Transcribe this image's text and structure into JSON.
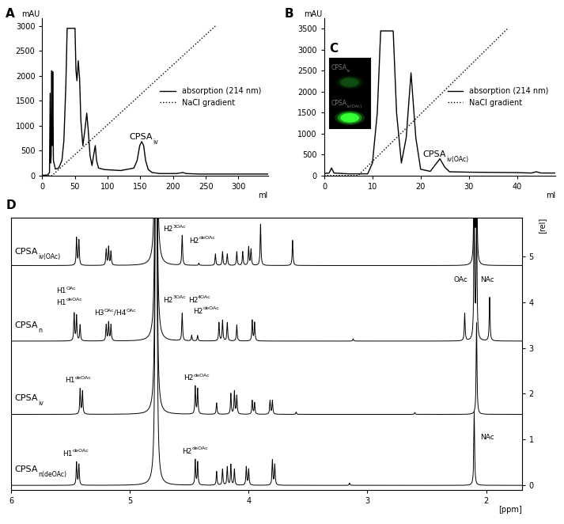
{
  "chart_data": [
    {
      "panel": "A",
      "type": "line",
      "x_label": "ml",
      "y_label": "mAU",
      "xlim": [
        0,
        345
      ],
      "xticks": [
        0,
        50,
        100,
        150,
        200,
        250,
        300
      ],
      "ylim": [
        0,
        3150
      ],
      "yticks": [
        0,
        500,
        1000,
        1500,
        2000,
        2500,
        3000
      ],
      "legend": "center right",
      "series": [
        {
          "name": "absorption (214 nm)",
          "color": "#000000",
          "line_style": "solid",
          "x": [
            0,
            8,
            11,
            12,
            12.8,
            13.6,
            14.4,
            15.2,
            16,
            17,
            20,
            25,
            30,
            33,
            36,
            38,
            50,
            51.5,
            53,
            55,
            57,
            59,
            62,
            65,
            68,
            70,
            73,
            76,
            79,
            81,
            83,
            86,
            95,
            120,
            140,
            145,
            149,
            152,
            155,
            158,
            162,
            168,
            180,
            205,
            210,
            215,
            220,
            240,
            345
          ],
          "values": [
            5,
            10,
            60,
            1650,
            250,
            400,
            2100,
            600,
            2080,
            300,
            130,
            150,
            300,
            700,
            1800,
            2950,
            2950,
            2100,
            1900,
            2300,
            1950,
            1100,
            600,
            900,
            1250,
            950,
            400,
            200,
            450,
            600,
            300,
            150,
            120,
            100,
            150,
            300,
            600,
            680,
            600,
            300,
            120,
            60,
            40,
            40,
            50,
            60,
            40,
            30,
            30
          ]
        },
        {
          "name": "NaCl gradient",
          "color": "#000000",
          "line_style": "dotted",
          "x": [
            0,
            15,
            265
          ],
          "values": [
            0,
            0,
            3000
          ]
        }
      ],
      "annotations": [
        {
          "parts": [
            {
              "text": "CPSA"
            },
            {
              "text": "iv",
              "style": "sub"
            }
          ],
          "x": 133,
          "y": 720
        }
      ]
    },
    {
      "panel": "B",
      "type": "line",
      "x_label": "ml",
      "y_label": "mAU",
      "xlim": [
        0,
        48
      ],
      "xticks": [
        0,
        10,
        20,
        30,
        40
      ],
      "ylim": [
        0,
        3750
      ],
      "yticks": [
        0,
        500,
        1000,
        1500,
        2000,
        2500,
        3000,
        3500
      ],
      "legend": "center right",
      "series": [
        {
          "name": "absorption (214 nm)",
          "color": "#000000",
          "line_style": "solid",
          "x": [
            0,
            1,
            1.5,
            2,
            5,
            9,
            10,
            11,
            11.7,
            14.3,
            15,
            16,
            17,
            18,
            19,
            20,
            22,
            23,
            24,
            25,
            26,
            30,
            40,
            43,
            44,
            45,
            48
          ],
          "values": [
            50,
            60,
            180,
            60,
            40,
            40,
            300,
            1500,
            3450,
            3450,
            1500,
            300,
            900,
            2450,
            900,
            150,
            100,
            250,
            400,
            200,
            90,
            80,
            70,
            60,
            90,
            60,
            60
          ]
        },
        {
          "name": "NaCl gradient",
          "color": "#000000",
          "line_style": "dotted",
          "x": [
            0,
            7,
            38
          ],
          "values": [
            0,
            0,
            3500
          ]
        }
      ],
      "annotations": [
        {
          "parts": [
            {
              "text": "CPSA"
            },
            {
              "text": "iv(OAc)",
              "style": "sub"
            }
          ],
          "x": 20.5,
          "y": 450
        }
      ]
    },
    {
      "panel": "C",
      "type": "gel",
      "inside": "B",
      "bands": [
        {
          "label": [
            {
              "text": "CPSA"
            },
            {
              "text": "iv",
              "style": "sub"
            }
          ],
          "intensity": 0.2
        },
        {
          "label": [
            {
              "text": "CPSA"
            },
            {
              "text": "iv(OAc)",
              "style": "sub"
            }
          ],
          "intensity": 1.0
        }
      ]
    },
    {
      "panel": "D",
      "type": "spectrum",
      "x_label": "[ppm]",
      "y_label": "[rel]",
      "xlim": [
        6.0,
        1.7
      ],
      "xticks": [
        2,
        3,
        4,
        5,
        6
      ],
      "ylim": [
        -0.1,
        5.85
      ],
      "yticks": [
        0,
        1,
        2,
        3,
        4,
        5
      ],
      "series": [
        {
          "label": [
            {
              "text": "CPSA"
            },
            {
              "text": "iv(OAc)",
              "style": "sub"
            }
          ],
          "label_at": [
            5.97,
            5.05
          ],
          "color": "#000000",
          "baseline": 4.8,
          "peaks": [
            [
              5.45,
              0.6
            ],
            [
              5.43,
              0.55
            ],
            [
              5.2,
              0.35
            ],
            [
              5.18,
              0.4
            ],
            [
              5.16,
              0.3
            ],
            [
              4.78,
              30
            ],
            [
              4.56,
              0.65
            ],
            [
              4.42,
              0.05
            ],
            [
              4.28,
              0.25
            ],
            [
              4.22,
              0.3
            ],
            [
              4.18,
              0.25
            ],
            [
              4.1,
              0.3
            ],
            [
              4.05,
              0.3
            ],
            [
              4.0,
              0.4
            ],
            [
              3.98,
              0.35
            ],
            [
              3.9,
              0.9
            ],
            [
              3.63,
              0.55
            ],
            [
              2.1,
              3
            ],
            [
              2.08,
              3
            ]
          ]
        },
        {
          "label": [
            {
              "text": "CPSA"
            },
            {
              "text": "n",
              "style": "sub"
            }
          ],
          "label_at": [
            5.97,
            3.45
          ],
          "color": "#000000",
          "baseline": 3.15,
          "peaks": [
            [
              5.47,
              0.6
            ],
            [
              5.45,
              0.55
            ],
            [
              5.42,
              0.35
            ],
            [
              5.2,
              0.35
            ],
            [
              5.18,
              0.4
            ],
            [
              5.16,
              0.35
            ],
            [
              4.78,
              30
            ],
            [
              4.56,
              0.6
            ],
            [
              4.48,
              0.12
            ],
            [
              4.43,
              0.12
            ],
            [
              4.25,
              0.4
            ],
            [
              4.22,
              0.45
            ],
            [
              4.18,
              0.4
            ],
            [
              4.1,
              0.35
            ],
            [
              3.97,
              0.45
            ],
            [
              3.95,
              0.4
            ],
            [
              3.12,
              0.05
            ],
            [
              2.18,
              0.6
            ],
            [
              2.1,
              3
            ],
            [
              2.08,
              3
            ],
            [
              1.97,
              0.95
            ]
          ]
        },
        {
          "label": [
            {
              "text": "CPSA"
            },
            {
              "text": "iv",
              "style": "sub"
            }
          ],
          "label_at": [
            5.97,
            1.85
          ],
          "color": "#000000",
          "baseline": 1.55,
          "peaks": [
            [
              5.42,
              0.55
            ],
            [
              5.4,
              0.5
            ],
            [
              4.78,
              30
            ],
            [
              4.45,
              0.6
            ],
            [
              4.43,
              0.55
            ],
            [
              4.27,
              0.25
            ],
            [
              4.15,
              0.45
            ],
            [
              4.12,
              0.5
            ],
            [
              4.1,
              0.4
            ],
            [
              3.97,
              0.3
            ],
            [
              3.95,
              0.25
            ],
            [
              3.82,
              0.3
            ],
            [
              3.8,
              0.3
            ],
            [
              3.6,
              0.05
            ],
            [
              2.6,
              0.04
            ],
            [
              2.08,
              2.0
            ]
          ]
        },
        {
          "label": [
            {
              "text": "CPSA"
            },
            {
              "text": "n(deOAc)",
              "style": "sub"
            }
          ],
          "label_at": [
            5.97,
            0.3
          ],
          "color": "#000000",
          "baseline": 0,
          "peaks": [
            [
              5.45,
              0.5
            ],
            [
              5.43,
              0.45
            ],
            [
              4.78,
              30
            ],
            [
              4.45,
              0.55
            ],
            [
              4.43,
              0.5
            ],
            [
              4.27,
              0.3
            ],
            [
              4.22,
              0.35
            ],
            [
              4.18,
              0.4
            ],
            [
              4.15,
              0.45
            ],
            [
              4.12,
              0.35
            ],
            [
              4.02,
              0.4
            ],
            [
              4.0,
              0.35
            ],
            [
              3.8,
              0.55
            ],
            [
              3.78,
              0.45
            ],
            [
              3.15,
              0.05
            ],
            [
              2.1,
              1.6
            ]
          ]
        }
      ],
      "annotations": [
        {
          "parts": [
            {
              "text": "H2"
            },
            {
              "text": "3OAc",
              "style": "sup"
            }
          ],
          "x": 4.72,
          "y": 5.55
        },
        {
          "parts": [
            {
              "text": "H2"
            },
            {
              "text": "deOAc",
              "style": "sup"
            }
          ],
          "x": 4.5,
          "y": 5.3
        },
        {
          "parts": [
            {
              "text": "H1"
            },
            {
              "text": "OAc",
              "style": "sup"
            }
          ],
          "x": 5.62,
          "y": 4.2
        },
        {
          "parts": [
            {
              "text": "H1"
            },
            {
              "text": "deOAc",
              "style": "sup"
            }
          ],
          "x": 5.62,
          "y": 3.95
        },
        {
          "parts": [
            {
              "text": "H3"
            },
            {
              "text": "OAc",
              "style": "sup"
            },
            {
              "text": "/H4"
            },
            {
              "text": "OAc",
              "style": "sup"
            }
          ],
          "x": 5.3,
          "y": 3.72
        },
        {
          "parts": [
            {
              "text": "H2"
            },
            {
              "text": "3OAc",
              "style": "sup"
            }
          ],
          "x": 4.72,
          "y": 4.0
        },
        {
          "parts": [
            {
              "text": "H2"
            },
            {
              "text": "4OAc",
              "style": "sup"
            }
          ],
          "x": 4.51,
          "y": 4.0
        },
        {
          "parts": [
            {
              "text": "H2"
            },
            {
              "text": "deOAc",
              "style": "sup"
            }
          ],
          "x": 4.47,
          "y": 3.76
        },
        {
          "parts": [
            {
              "text": "OAc"
            }
          ],
          "x": 2.27,
          "y": 4.45
        },
        {
          "parts": [
            {
              "text": "NAc"
            }
          ],
          "x": 2.05,
          "y": 4.45
        },
        {
          "parts": [
            {
              "text": "H1"
            },
            {
              "text": "deOAc",
              "style": "sup"
            }
          ],
          "x": 5.55,
          "y": 2.25
        },
        {
          "parts": [
            {
              "text": "H2"
            },
            {
              "text": "deOAc",
              "style": "sup"
            }
          ],
          "x": 4.55,
          "y": 2.3
        },
        {
          "parts": [
            {
              "text": "H1"
            },
            {
              "text": "deOAc",
              "style": "sup"
            }
          ],
          "x": 5.57,
          "y": 0.65
        },
        {
          "parts": [
            {
              "text": "H2"
            },
            {
              "text": "deOAc",
              "style": "sup"
            }
          ],
          "x": 4.56,
          "y": 0.7
        },
        {
          "parts": [
            {
              "text": "NAc"
            }
          ],
          "x": 2.05,
          "y": 1.0
        }
      ]
    }
  ]
}
